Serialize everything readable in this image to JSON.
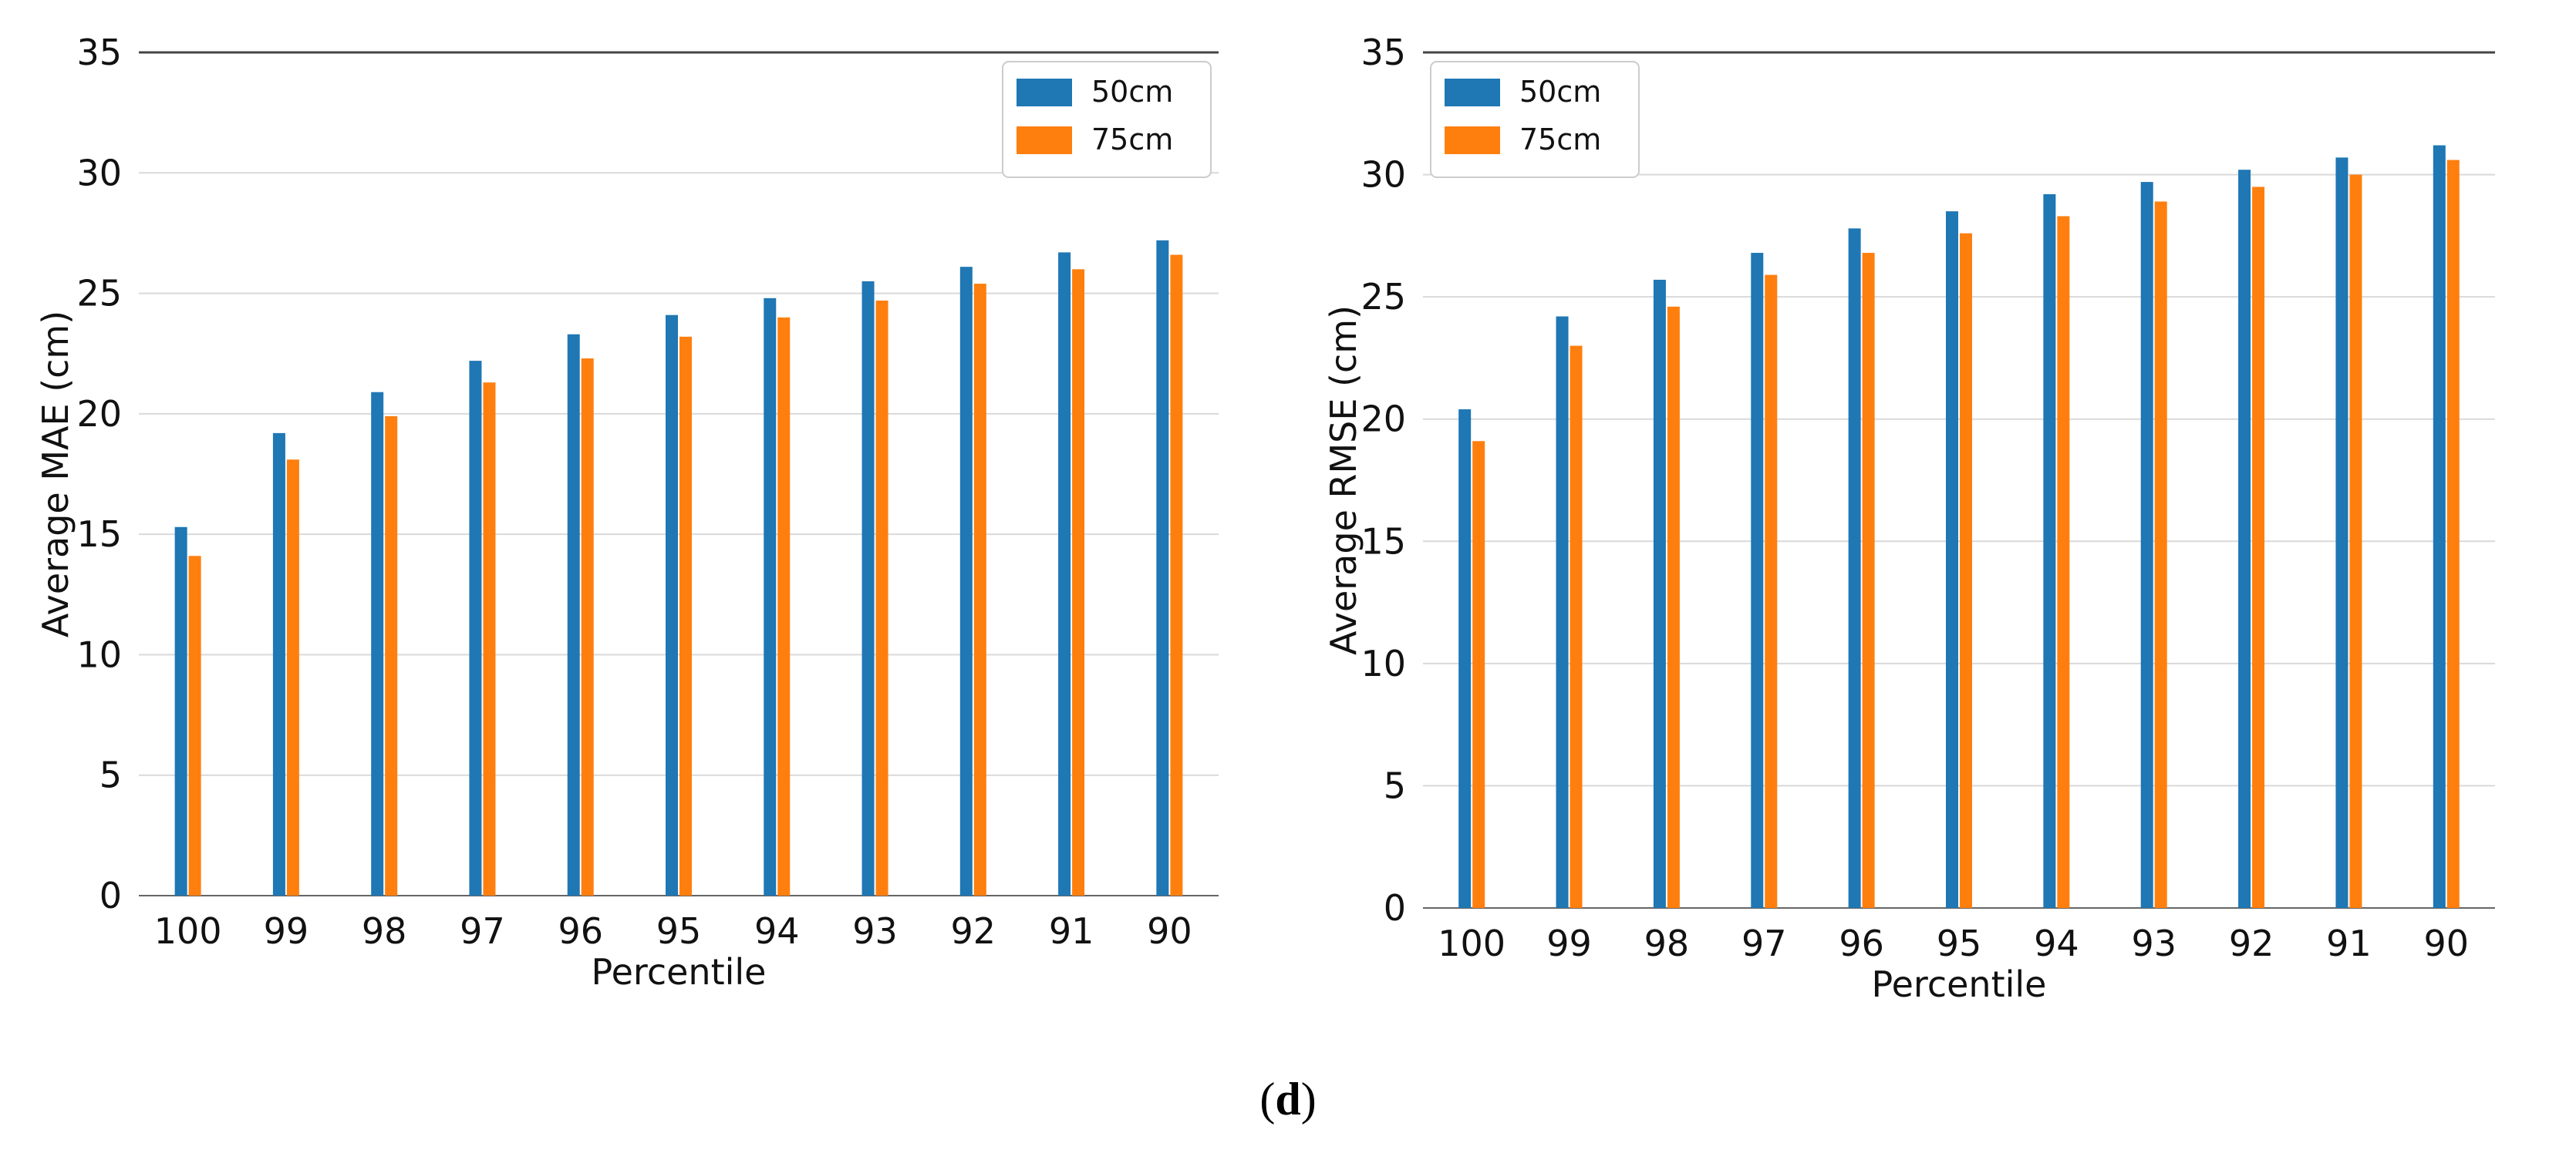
{
  "colors": {
    "series_50": "#1f77b4",
    "series_75": "#ff7f0e",
    "grid": "#d9d9d9",
    "axis_top": "#444444"
  },
  "chart_data": [
    {
      "type": "bar",
      "xlabel": "Percentile",
      "ylabel": "Average MAE (cm)",
      "ylim": [
        0,
        35
      ],
      "yticks": [
        "0",
        "5",
        "10",
        "15",
        "20",
        "25",
        "30",
        "35"
      ],
      "categories": [
        "100",
        "99",
        "98",
        "97",
        "96",
        "95",
        "94",
        "93",
        "92",
        "91",
        "90"
      ],
      "legend_position": "top-right",
      "series": [
        {
          "name": "50cm",
          "values": [
            15.3,
            19.2,
            20.9,
            22.2,
            23.3,
            24.1,
            24.8,
            25.5,
            26.1,
            26.7,
            27.2
          ]
        },
        {
          "name": "75cm",
          "values": [
            14.1,
            18.1,
            19.9,
            21.3,
            22.3,
            23.2,
            24.0,
            24.7,
            25.4,
            26.0,
            26.6
          ]
        }
      ]
    },
    {
      "type": "bar",
      "xlabel": "Percentile",
      "ylabel": "Average RMSE (cm)",
      "ylim": [
        0,
        35
      ],
      "yticks": [
        "0",
        "5",
        "10",
        "15",
        "20",
        "25",
        "30",
        "35"
      ],
      "categories": [
        "100",
        "99",
        "98",
        "97",
        "96",
        "95",
        "94",
        "93",
        "92",
        "91",
        "90"
      ],
      "legend_position": "top-left",
      "series": [
        {
          "name": "50cm",
          "values": [
            20.4,
            24.2,
            25.7,
            26.8,
            27.8,
            28.5,
            29.2,
            29.7,
            30.2,
            30.7,
            31.2
          ]
        },
        {
          "name": "75cm",
          "values": [
            19.1,
            23.0,
            24.6,
            25.9,
            26.8,
            27.6,
            28.3,
            28.9,
            29.5,
            30.0,
            30.6
          ]
        }
      ]
    }
  ],
  "caption": {
    "open": "(",
    "letter": "d",
    "close": ")"
  }
}
